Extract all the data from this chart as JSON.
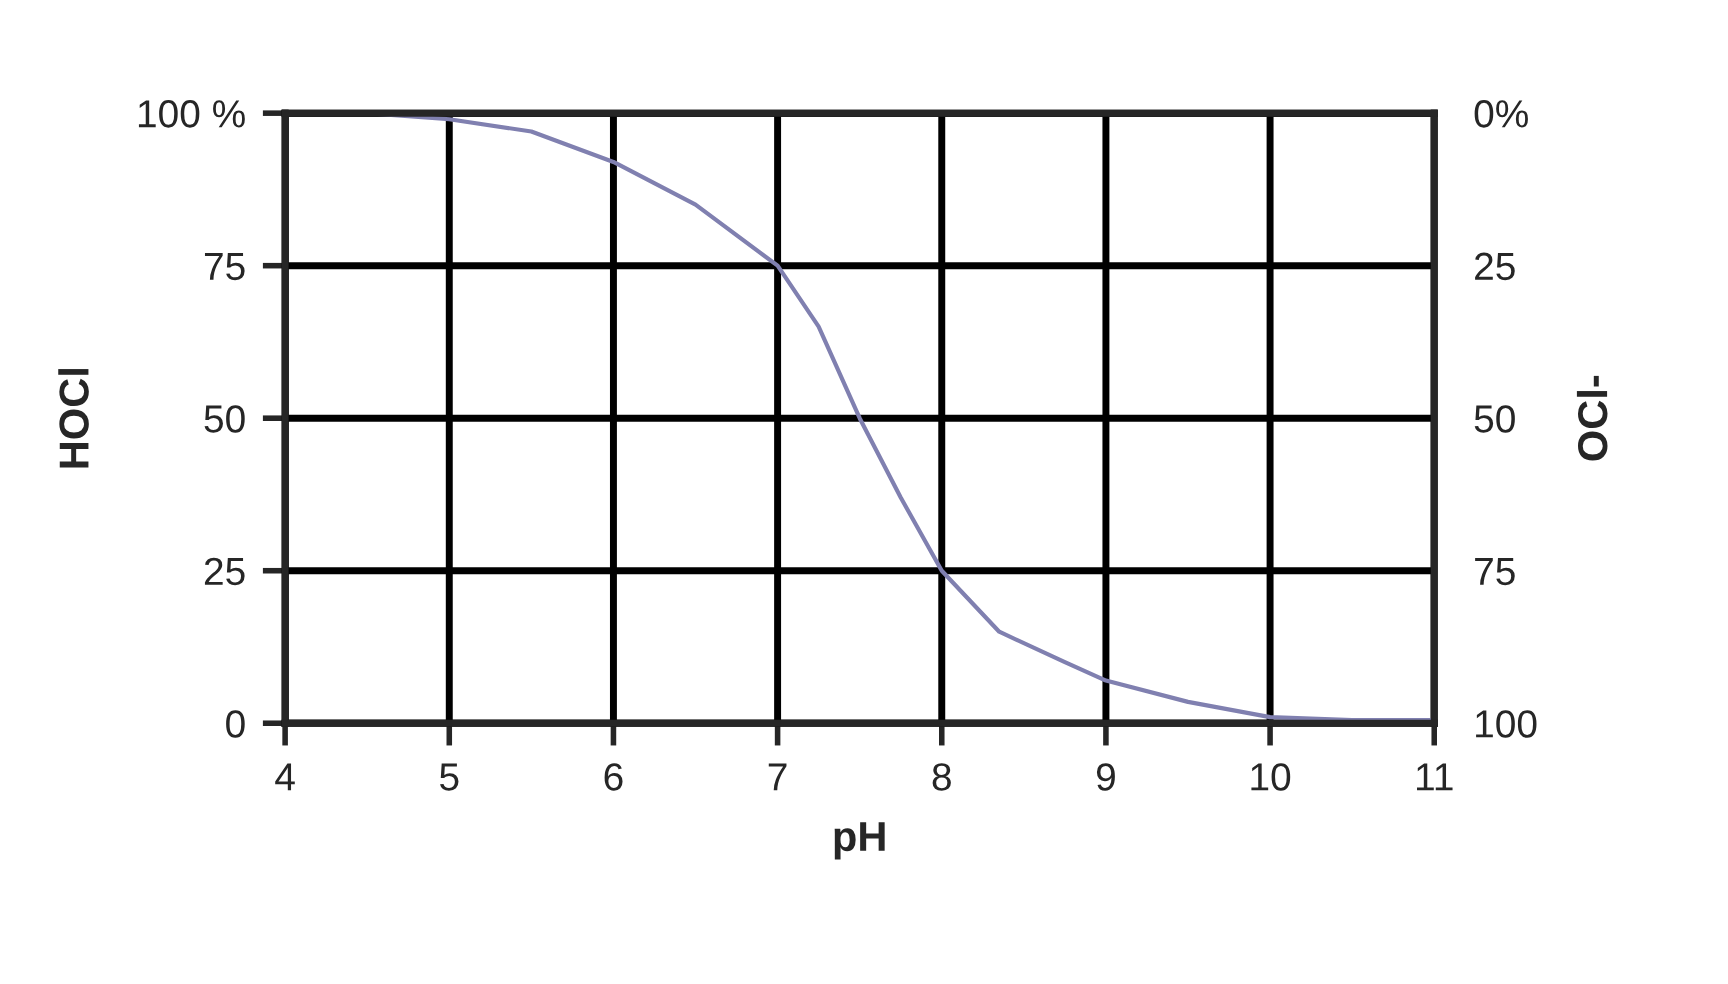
{
  "chart_data": {
    "type": "line",
    "xlabel": "pH",
    "ylabel": "HOCl",
    "y2label": "OCl-",
    "x": [
      4,
      4.5,
      5,
      5.5,
      6,
      6.5,
      7,
      7.25,
      7.5,
      7.75,
      8,
      8.35,
      8.75,
      9,
      9.5,
      10,
      10.5,
      11
    ],
    "series": [
      {
        "color": "#8080b0",
        "values": [
          100,
          100,
          99,
          97,
          92,
          85,
          75,
          65,
          50,
          37,
          25,
          15,
          10,
          7,
          3.5,
          1,
          0.5,
          0.5
        ]
      }
    ],
    "xlim": [
      4,
      11
    ],
    "xticks": [
      4,
      5,
      6,
      7,
      8,
      9,
      10,
      11
    ],
    "ylim": [
      0,
      100
    ],
    "yticks": [
      0,
      25,
      50,
      75,
      {
        "value": 100,
        "label": "100 %"
      }
    ],
    "y2lim": [
      100,
      0
    ],
    "y2ticks": [
      {
        "value": 0,
        "label": "0%"
      },
      25,
      50,
      75,
      100
    ],
    "grid": true,
    "marker": "none",
    "line_style": "solid"
  }
}
